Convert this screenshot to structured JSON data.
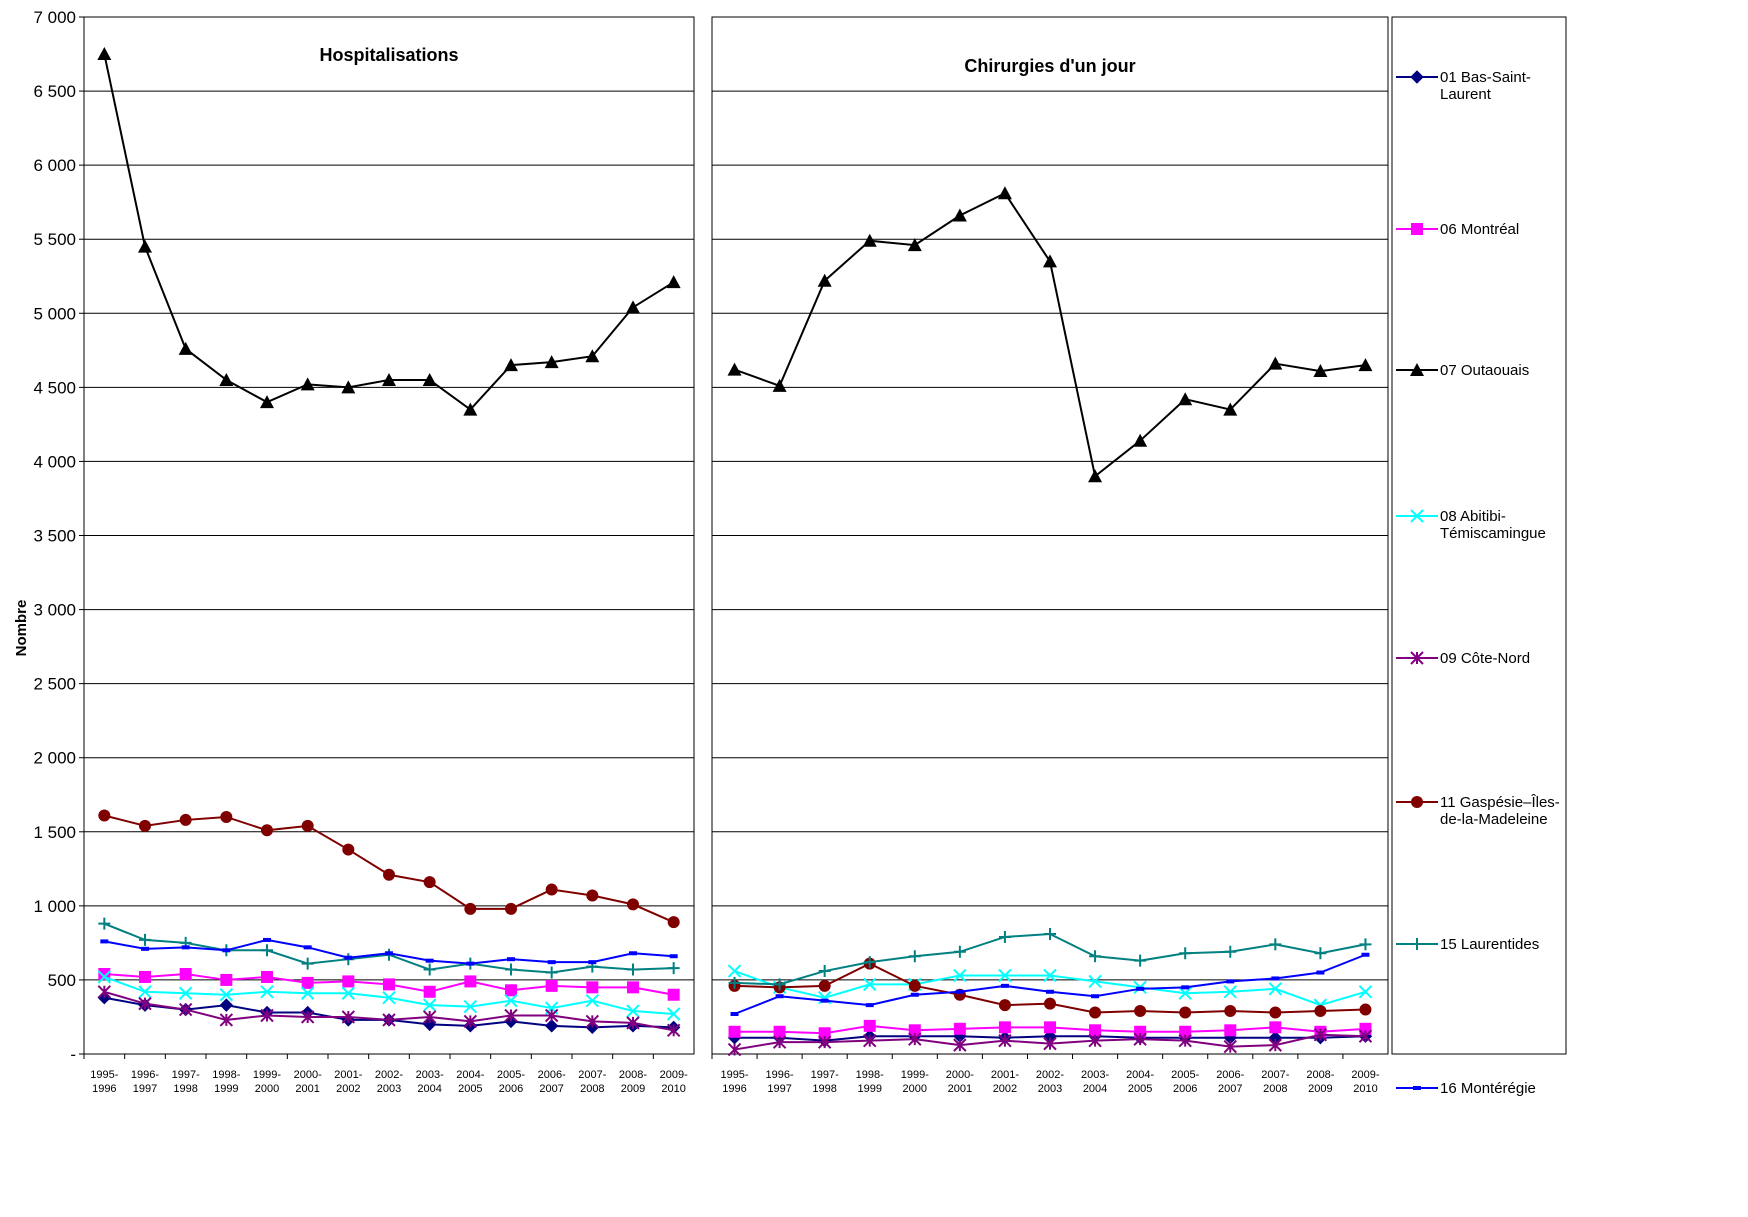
{
  "chart_data": {
    "type": "line",
    "ylabel": "Nombre",
    "ylim": [
      0,
      7000
    ],
    "ytick_step": 500,
    "y_tick_labels": [
      "-",
      "500",
      "1 000",
      "1 500",
      "2 000",
      "2 500",
      "3 000",
      "3 500",
      "4 000",
      "4 500",
      "5 000",
      "5 500",
      "6 000",
      "6 500",
      "7 000"
    ],
    "x_tick_labels": [
      [
        "1995-",
        "1996"
      ],
      [
        "1996-",
        "1997"
      ],
      [
        "1997-",
        "1998"
      ],
      [
        "1998-",
        "1999"
      ],
      [
        "1999-",
        "2000"
      ],
      [
        "2000-",
        "2001"
      ],
      [
        "2001-",
        "2002"
      ],
      [
        "2002-",
        "2003"
      ],
      [
        "2003-",
        "2004"
      ],
      [
        "2004-",
        "2005"
      ],
      [
        "2005-",
        "2006"
      ],
      [
        "2006-",
        "2007"
      ],
      [
        "2007-",
        "2008"
      ],
      [
        "2008-",
        "2009"
      ],
      [
        "2009-",
        "2010"
      ]
    ],
    "grid": true,
    "legend_position": "right",
    "series_style": [
      {
        "color": "#000080",
        "marker": "diamond"
      },
      {
        "color": "#FF00FF",
        "marker": "square"
      },
      {
        "color": "#000000",
        "marker": "triangle"
      },
      {
        "color": "#00FFFF",
        "marker": "x"
      },
      {
        "color": "#800080",
        "marker": "star"
      },
      {
        "color": "#800000",
        "marker": "circle"
      },
      {
        "color": "#008080",
        "marker": "plus"
      },
      {
        "color": "#0000FF",
        "marker": "dash"
      }
    ],
    "legend_labels": [
      [
        "01 Bas-Saint-",
        "Laurent"
      ],
      [
        "06 Montréal"
      ],
      [
        "07 Outaouais"
      ],
      [
        "08 Abitibi-",
        "Témiscamingue"
      ],
      [
        "09 Côte-Nord"
      ],
      [
        "11 Gaspésie–Îles-",
        "de-la-Madeleine"
      ],
      [
        "15 Laurentides"
      ],
      [
        "16 Montérégie"
      ]
    ],
    "panels": [
      {
        "title": "Hospitalisations",
        "series": [
          {
            "name": "01 Bas-Saint-Laurent",
            "values": [
              380,
              330,
              300,
              330,
              280,
              280,
              230,
              230,
              200,
              190,
              220,
              190,
              180,
              190,
              180
            ]
          },
          {
            "name": "06 Montréal",
            "values": [
              540,
              520,
              540,
              500,
              520,
              480,
              490,
              470,
              420,
              490,
              430,
              460,
              450,
              450,
              400
            ]
          },
          {
            "name": "07 Outaouais",
            "values": [
              6750,
              5450,
              4760,
              4550,
              4400,
              4520,
              4500,
              4550,
              4550,
              4350,
              4650,
              4670,
              4710,
              5040,
              5210
            ]
          },
          {
            "name": "08 Abitibi-Témiscamingue",
            "values": [
              520,
              420,
              410,
              400,
              420,
              410,
              410,
              380,
              330,
              320,
              360,
              310,
              360,
              290,
              270
            ]
          },
          {
            "name": "09 Côte-Nord",
            "values": [
              420,
              340,
              300,
              230,
              260,
              250,
              250,
              230,
              250,
              220,
              260,
              260,
              220,
              210,
              160
            ]
          },
          {
            "name": "11 Gaspésie–Îles-de-la-Madeleine",
            "values": [
              1610,
              1540,
              1580,
              1600,
              1510,
              1540,
              1380,
              1210,
              1160,
              980,
              980,
              1110,
              1070,
              1010,
              890
            ]
          },
          {
            "name": "15 Laurentides",
            "values": [
              880,
              770,
              750,
              700,
              700,
              610,
              640,
              670,
              570,
              610,
              570,
              550,
              590,
              570,
              580
            ]
          },
          {
            "name": "16 Montérégie",
            "values": [
              760,
              710,
              720,
              700,
              770,
              720,
              650,
              680,
              630,
              610,
              640,
              620,
              620,
              680,
              660
            ]
          }
        ]
      },
      {
        "title": "Chirurgies d'un jour",
        "series": [
          {
            "name": "01 Bas-Saint-Laurent",
            "values": [
              110,
              110,
              90,
              120,
              120,
              120,
              110,
              120,
              120,
              110,
              110,
              110,
              110,
              110,
              120
            ]
          },
          {
            "name": "06 Montréal",
            "values": [
              150,
              150,
              140,
              190,
              160,
              170,
              180,
              180,
              160,
              150,
              150,
              160,
              180,
              150,
              170
            ]
          },
          {
            "name": "07 Outaouais",
            "values": [
              4620,
              4510,
              5220,
              5490,
              5460,
              5660,
              5810,
              5350,
              3900,
              4140,
              4420,
              4350,
              4660,
              4610,
              4650
            ]
          },
          {
            "name": "08 Abitibi-Témiscamingue",
            "values": [
              560,
              450,
              380,
              470,
              470,
              530,
              530,
              530,
              490,
              450,
              410,
              420,
              440,
              330,
              420
            ]
          },
          {
            "name": "09 Côte-Nord",
            "values": [
              30,
              80,
              80,
              90,
              100,
              60,
              90,
              70,
              90,
              100,
              90,
              50,
              60,
              130,
              120
            ]
          },
          {
            "name": "11 Gaspésie–Îles-de-la-Madeleine",
            "values": [
              460,
              450,
              460,
              610,
              460,
              400,
              330,
              340,
              280,
              290,
              280,
              290,
              280,
              290,
              300
            ]
          },
          {
            "name": "15 Laurentides",
            "values": [
              480,
              470,
              560,
              620,
              660,
              690,
              790,
              810,
              660,
              630,
              680,
              690,
              740,
              680,
              740
            ]
          },
          {
            "name": "16 Montérégie",
            "values": [
              270,
              390,
              360,
              330,
              400,
              420,
              460,
              420,
              390,
              440,
              450,
              490,
              510,
              550,
              670
            ]
          }
        ]
      }
    ]
  }
}
